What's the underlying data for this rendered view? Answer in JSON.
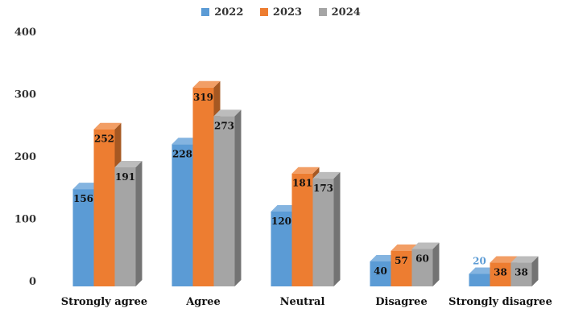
{
  "chart_data": {
    "type": "bar",
    "categories": [
      "Strongly agree",
      "Agree",
      "Neutral",
      "Disagree",
      "Strongly disagree"
    ],
    "series": [
      {
        "name": "2022",
        "color": "#5b9bd5",
        "values": [
          156,
          228,
          120,
          40,
          20
        ]
      },
      {
        "name": "2023",
        "color": "#ed7d31",
        "values": [
          252,
          319,
          181,
          57,
          38
        ]
      },
      {
        "name": "2024",
        "color": "#a5a5a5",
        "values": [
          191,
          273,
          173,
          60,
          38
        ]
      }
    ],
    "yticks": [
      "0",
      "100",
      "200",
      "300",
      "400"
    ],
    "ylim": [
      0,
      400
    ],
    "legend_position": "top-center",
    "grid": false,
    "style": "3d-bar"
  }
}
